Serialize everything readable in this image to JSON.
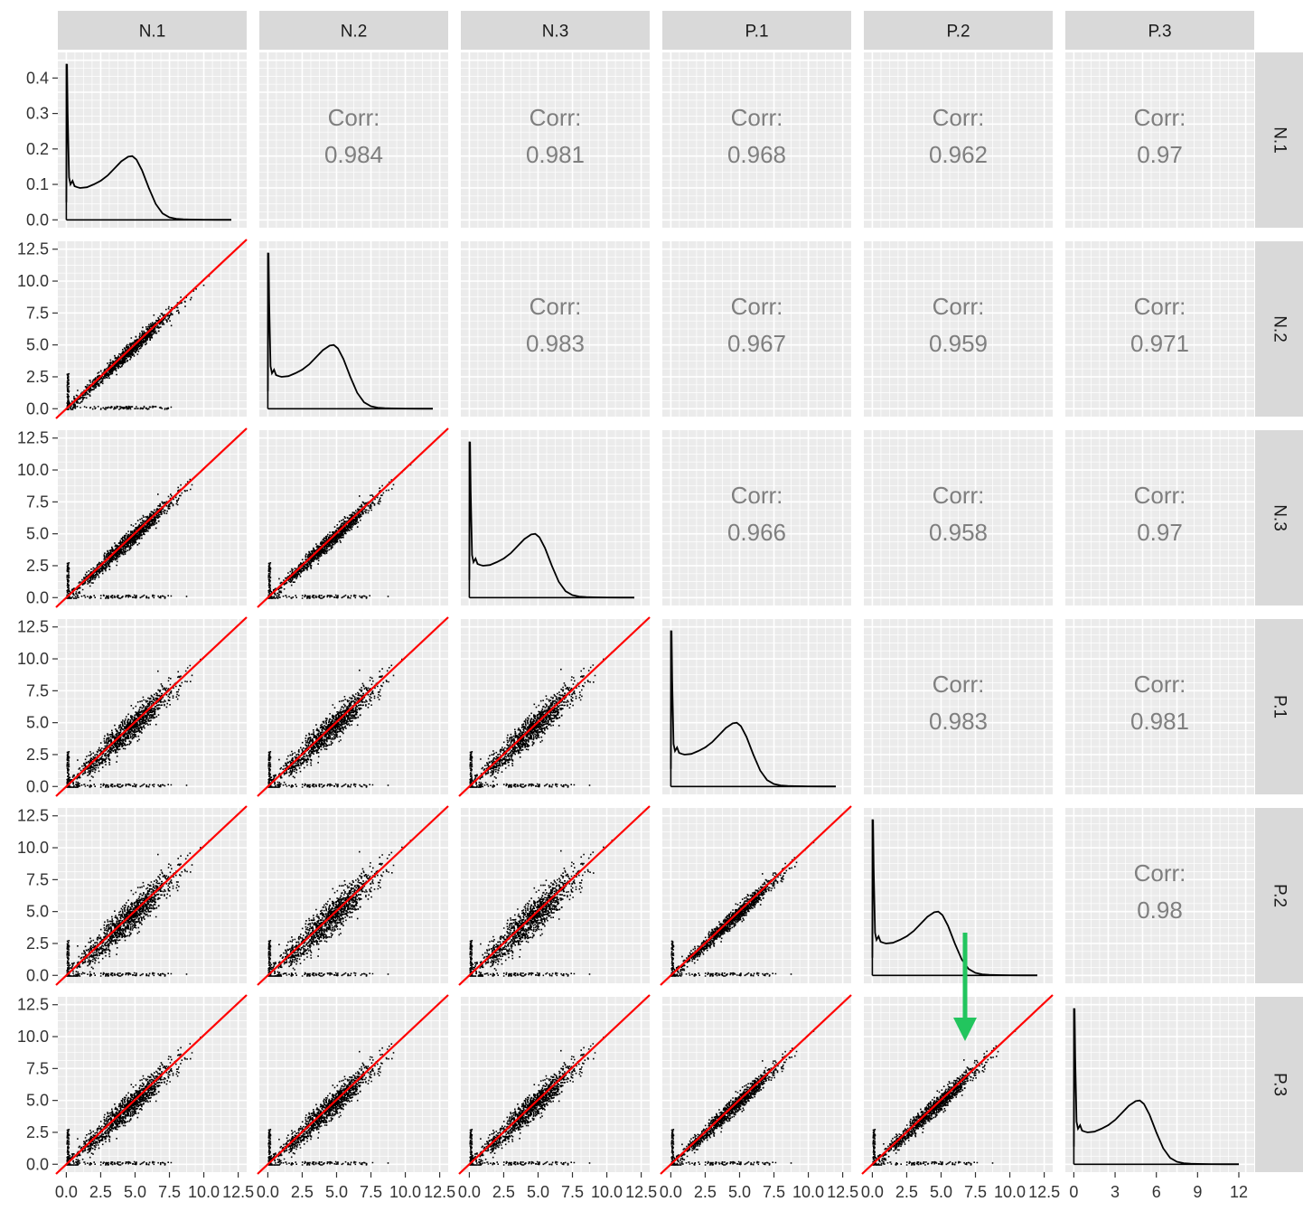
{
  "chart_data": {
    "type": "scatter",
    "variables": [
      "N.1",
      "N.2",
      "N.3",
      "P.1",
      "P.2",
      "P.3"
    ],
    "corr_label": "Corr:",
    "correlations": [
      {
        "row": "N.2",
        "col": "N.1",
        "value": "0.984"
      },
      {
        "row": "N.3",
        "col": "N.1",
        "value": "0.981"
      },
      {
        "row": "P.1",
        "col": "N.1",
        "value": "0.968"
      },
      {
        "row": "P.2",
        "col": "N.1",
        "value": "0.962"
      },
      {
        "row": "P.3",
        "col": "N.1",
        "value": "0.97"
      },
      {
        "row": "N.3",
        "col": "N.2",
        "value": "0.983"
      },
      {
        "row": "P.1",
        "col": "N.2",
        "value": "0.967"
      },
      {
        "row": "P.2",
        "col": "N.2",
        "value": "0.959"
      },
      {
        "row": "P.3",
        "col": "N.2",
        "value": "0.971"
      },
      {
        "row": "P.1",
        "col": "N.3",
        "value": "0.966"
      },
      {
        "row": "P.2",
        "col": "N.3",
        "value": "0.958"
      },
      {
        "row": "P.3",
        "col": "N.3",
        "value": "0.97"
      },
      {
        "row": "P.2",
        "col": "P.1",
        "value": "0.983"
      },
      {
        "row": "P.3",
        "col": "P.1",
        "value": "0.981"
      },
      {
        "row": "P.3",
        "col": "P.2",
        "value": "0.98"
      }
    ],
    "density_y_ticks": [
      "0.0",
      "0.1",
      "0.2",
      "0.3",
      "0.4"
    ],
    "density_y_range": [
      0,
      0.45
    ],
    "scatter_ticks": [
      "0.0",
      "2.5",
      "5.0",
      "7.5",
      "10.0",
      "12.5"
    ],
    "scatter_range": [
      0,
      12.5
    ],
    "last_col_x_ticks": [
      "0",
      "3",
      "6",
      "9",
      "12"
    ],
    "density_curve_x": [
      0,
      0.05,
      0.1,
      0.2,
      0.3,
      0.45,
      0.6,
      0.8,
      1.0,
      1.5,
      2.0,
      2.5,
      3.0,
      3.5,
      4.0,
      4.5,
      4.8,
      5.1,
      5.5,
      6.0,
      6.5,
      7.0,
      7.5,
      8.0,
      8.5,
      9.0,
      10.0,
      11.0,
      12.0
    ],
    "density_curve_y": [
      0.05,
      0.44,
      0.3,
      0.12,
      0.1,
      0.11,
      0.095,
      0.092,
      0.09,
      0.092,
      0.1,
      0.11,
      0.125,
      0.145,
      0.165,
      0.178,
      0.18,
      0.17,
      0.14,
      0.09,
      0.045,
      0.018,
      0.007,
      0.003,
      0.0015,
      0.001,
      0.0005,
      0.0002,
      0.0001
    ],
    "identity_line_color": "#ff0000",
    "point_color": "#000000",
    "panel_background": "#ebebeb",
    "strip_background": "#d9d9d9",
    "annotation": {
      "type": "arrow",
      "color": "#22c55e",
      "panel_row": "P.2",
      "panel_col": "P.2"
    }
  }
}
